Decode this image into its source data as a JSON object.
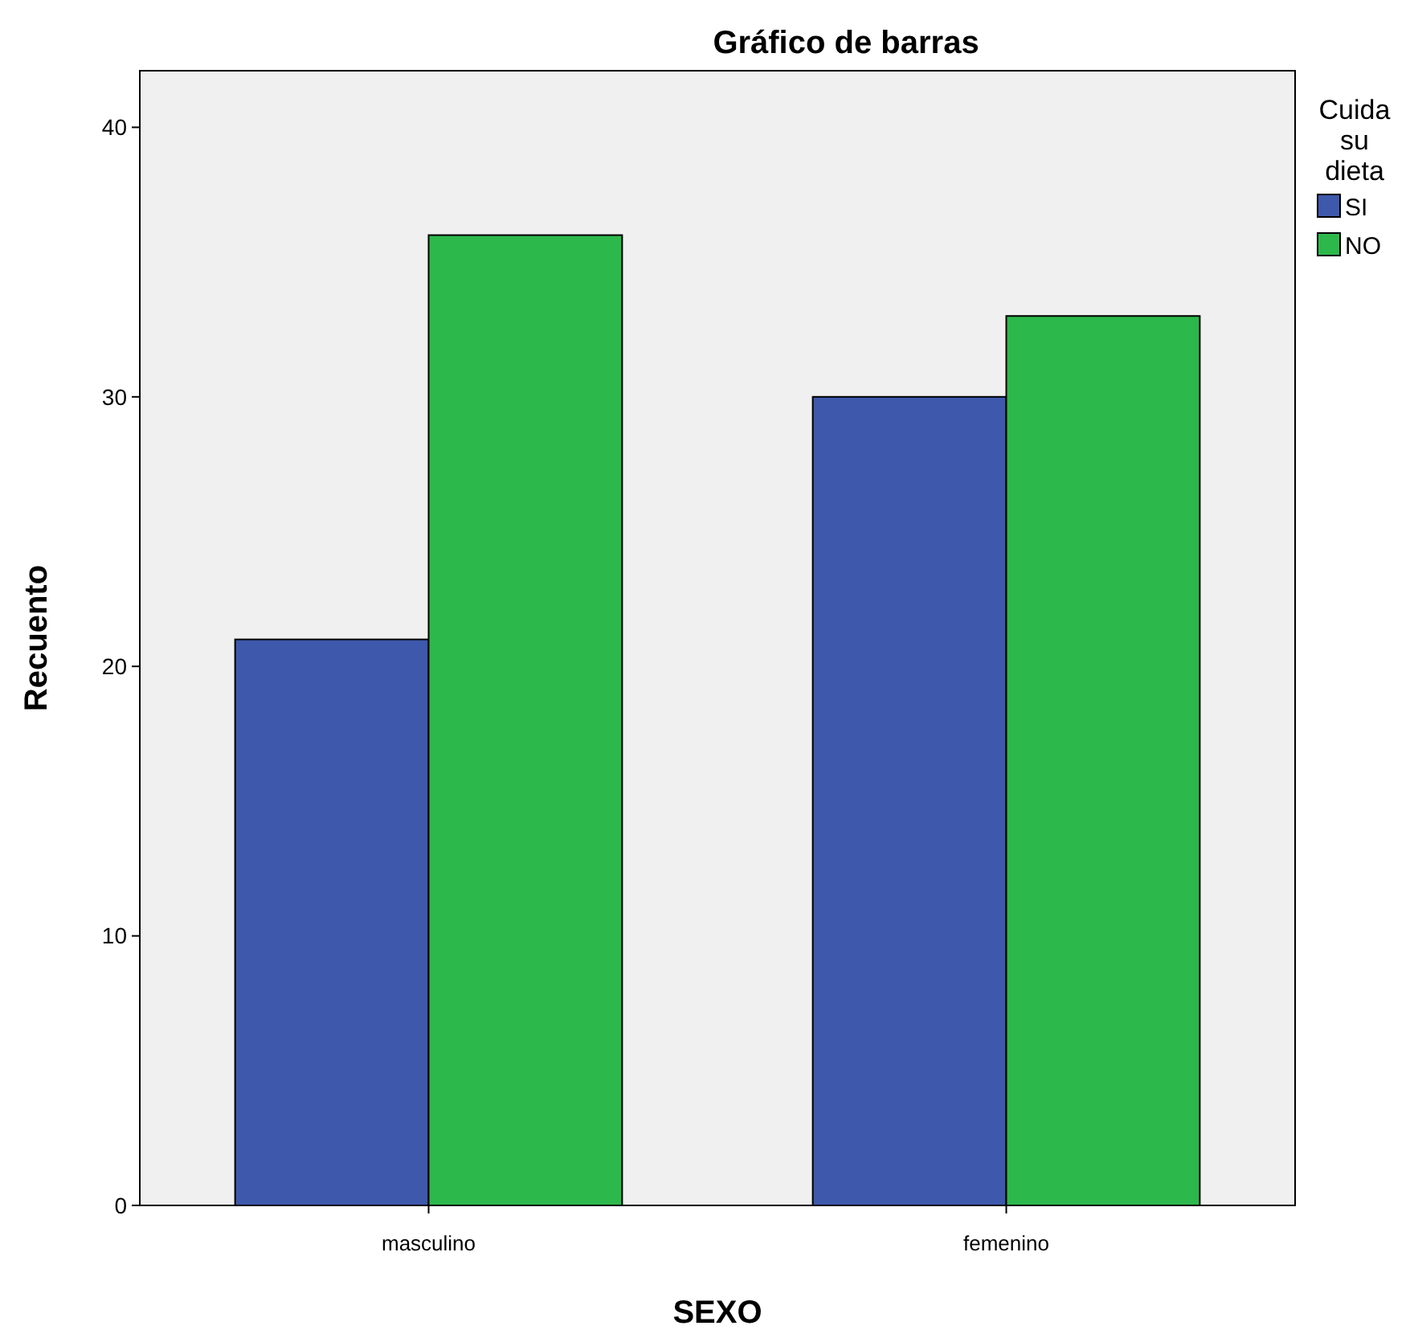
{
  "chart_data": {
    "type": "bar",
    "title": "Gráfico de barras",
    "xlabel": "SEXO",
    "ylabel": "Recuento",
    "legend_title": "Cuida su dieta",
    "categories": [
      "masculino",
      "femenino"
    ],
    "series": [
      {
        "name": "SI",
        "color": "#3e58ac",
        "values": [
          21,
          30
        ]
      },
      {
        "name": "NO",
        "color": "#2db84b",
        "values": [
          36,
          33
        ]
      }
    ],
    "ylim": [
      0,
      42.1
    ],
    "yticks": [
      0,
      10,
      20,
      30,
      40
    ],
    "legend": "top right"
  }
}
